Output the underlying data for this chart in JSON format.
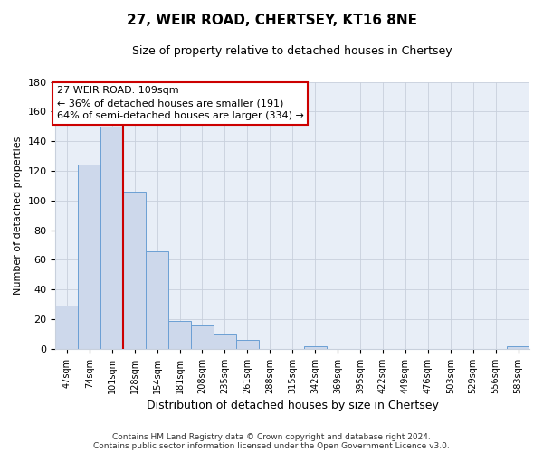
{
  "title": "27, WEIR ROAD, CHERTSEY, KT16 8NE",
  "subtitle": "Size of property relative to detached houses in Chertsey",
  "xlabel": "Distribution of detached houses by size in Chertsey",
  "ylabel": "Number of detached properties",
  "bar_labels": [
    "47sqm",
    "74sqm",
    "101sqm",
    "128sqm",
    "154sqm",
    "181sqm",
    "208sqm",
    "235sqm",
    "261sqm",
    "288sqm",
    "315sqm",
    "342sqm",
    "369sqm",
    "395sqm",
    "422sqm",
    "449sqm",
    "476sqm",
    "503sqm",
    "529sqm",
    "556sqm",
    "583sqm"
  ],
  "bar_heights": [
    29,
    124,
    150,
    106,
    66,
    19,
    16,
    10,
    6,
    0,
    0,
    2,
    0,
    0,
    0,
    0,
    0,
    0,
    0,
    0,
    2
  ],
  "bar_color": "#cdd8eb",
  "bar_edge_color": "#6b9fd4",
  "ylim": [
    0,
    180
  ],
  "yticks": [
    0,
    20,
    40,
    60,
    80,
    100,
    120,
    140,
    160,
    180
  ],
  "vline_x": 3,
  "vline_color": "#cc0000",
  "annotation_box_text": "27 WEIR ROAD: 109sqm\n← 36% of detached houses are smaller (191)\n64% of semi-detached houses are larger (334) →",
  "annotation_box_color": "#ffffff",
  "annotation_box_edge_color": "#cc0000",
  "footer_line1": "Contains HM Land Registry data © Crown copyright and database right 2024.",
  "footer_line2": "Contains public sector information licensed under the Open Government Licence v3.0.",
  "bg_color": "#ffffff",
  "plot_bg_color": "#e8eef7",
  "grid_color": "#c8d0dc"
}
